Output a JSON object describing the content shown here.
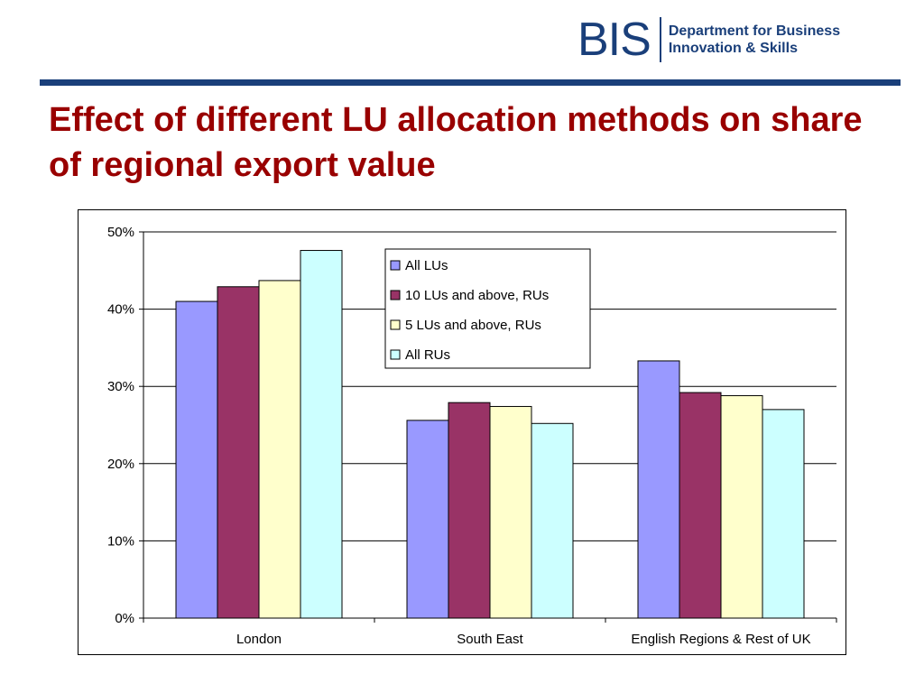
{
  "header": {
    "logo_mark": "BIS",
    "logo_line1": "Department for Business",
    "logo_line2": "Innovation & Skills"
  },
  "slide": {
    "title": "Effect of different LU allocation methods on share of regional export value"
  },
  "colors": {
    "title": "#990000",
    "brand": "#1a3f7a",
    "series": [
      "#9999ff",
      "#993366",
      "#ffffcc",
      "#ccffff"
    ]
  },
  "chart_data": {
    "type": "bar",
    "categories": [
      "London",
      "South East",
      "English Regions & Rest of UK"
    ],
    "series": [
      {
        "name": "All LUs",
        "values": [
          41.0,
          25.6,
          33.3
        ]
      },
      {
        "name": "10 LUs and above, RUs",
        "values": [
          42.9,
          27.9,
          29.2
        ]
      },
      {
        "name": "5 LUs and above, RUs",
        "values": [
          43.7,
          27.4,
          28.8
        ]
      },
      {
        "name": "All RUs",
        "values": [
          47.6,
          25.2,
          27.0
        ]
      }
    ],
    "ylim": [
      0,
      50
    ],
    "yticks": [
      "0%",
      "10%",
      "20%",
      "30%",
      "40%",
      "50%"
    ],
    "grid": true,
    "legend": "top-center",
    "title": "",
    "xlabel": "",
    "ylabel": ""
  }
}
